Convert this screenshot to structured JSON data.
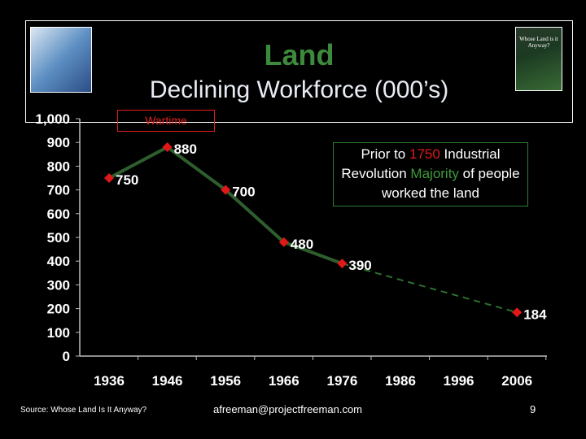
{
  "header": {
    "title": "Land",
    "subtitle": "Declining Workforce (000’s)",
    "book_cover_text": "Whose Land is it Anyway?"
  },
  "colors": {
    "title": "#3d8a3d",
    "line": "#2e5e2e",
    "marker": "#e01818",
    "callout_red": "#e01818",
    "callout_green": "#3d9a3d",
    "wartime": "#e0201c"
  },
  "annotations": {
    "wartime": "Wartime",
    "callout": {
      "p1": "Prior to ",
      "year": "1750",
      "p2": " Industrial Revolution ",
      "majority": "Majority",
      "p3": " of people worked the land"
    }
  },
  "chart_data": {
    "type": "line",
    "title": "Declining Workforce (000’s)",
    "xlabel": "",
    "ylabel": "",
    "categories": [
      "1936",
      "1946",
      "1956",
      "1966",
      "1976",
      "1986",
      "1996",
      "2006"
    ],
    "series": [
      {
        "name": "Workforce (000’s)",
        "values": [
          750,
          880,
          700,
          480,
          390,
          null,
          null,
          184
        ]
      }
    ],
    "projected_segment": {
      "from": "1976",
      "to": "2006",
      "style": "dashed"
    },
    "y_ticks": [
      "0",
      "100",
      "200",
      "300",
      "400",
      "500",
      "600",
      "700",
      "800",
      "900",
      "1,000"
    ],
    "ylim": [
      0,
      1000
    ],
    "grid": false
  },
  "footer": {
    "source": "Source: Whose Land Is It Anyway?",
    "email": "afreeman@projectfreeman.com",
    "page": "9"
  }
}
